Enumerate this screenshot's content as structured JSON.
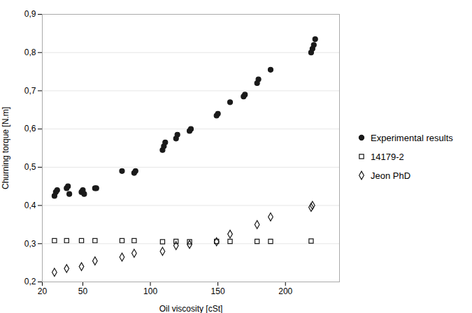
{
  "chart_data": {
    "type": "scatter",
    "xlabel": "Oil viscosity [cSt]",
    "ylabel": "Churning torque [N.m]",
    "xlim": [
      20,
      240
    ],
    "ylim": [
      0.2,
      0.9
    ],
    "xticks": [
      20,
      50,
      100,
      150,
      200
    ],
    "yticks": [
      {
        "value": 0.2,
        "label": "0,2"
      },
      {
        "value": 0.3,
        "label": "0,3"
      },
      {
        "value": 0.4,
        "label": "0,4"
      },
      {
        "value": 0.5,
        "label": "0,5"
      },
      {
        "value": 0.6,
        "label": "0,6"
      },
      {
        "value": 0.7,
        "label": "0,7"
      },
      {
        "value": 0.8,
        "label": "0,8"
      },
      {
        "value": 0.9,
        "label": "0,9"
      }
    ],
    "grid": "y",
    "legend": "right",
    "series": [
      {
        "name": "Experimental results",
        "color": "#1a1a1a",
        "marker": "filled_circle",
        "x": [
          29,
          30,
          31,
          38,
          39,
          40,
          49,
          50,
          51,
          59,
          60,
          79,
          88,
          89,
          109,
          110,
          111,
          119,
          120,
          129,
          130,
          149,
          150,
          159,
          169,
          170,
          179,
          180,
          189,
          219,
          220,
          221,
          222
        ],
        "values": [
          0.425,
          0.435,
          0.44,
          0.445,
          0.45,
          0.43,
          0.435,
          0.44,
          0.43,
          0.445,
          0.445,
          0.49,
          0.485,
          0.49,
          0.545,
          0.555,
          0.565,
          0.575,
          0.585,
          0.595,
          0.6,
          0.635,
          0.64,
          0.67,
          0.685,
          0.69,
          0.72,
          0.73,
          0.755,
          0.8,
          0.81,
          0.82,
          0.835
        ]
      },
      {
        "name": "14179-2",
        "color": "#1a1a1a",
        "marker": "open_square",
        "x": [
          29,
          38,
          49,
          59,
          79,
          88,
          109,
          119,
          129,
          149,
          159,
          179,
          189,
          219
        ],
        "values": [
          0.308,
          0.308,
          0.308,
          0.308,
          0.308,
          0.308,
          0.305,
          0.306,
          0.305,
          0.306,
          0.306,
          0.306,
          0.306,
          0.307
        ]
      },
      {
        "name": "Jeon PhD",
        "color": "#1a1a1a",
        "marker": "open_diamond",
        "x": [
          29,
          38,
          49,
          59,
          79,
          88,
          109,
          119,
          129,
          149,
          159,
          179,
          189,
          219,
          220
        ],
        "values": [
          0.225,
          0.235,
          0.24,
          0.255,
          0.265,
          0.275,
          0.28,
          0.295,
          0.298,
          0.305,
          0.325,
          0.35,
          0.37,
          0.395,
          0.4
        ]
      }
    ]
  }
}
